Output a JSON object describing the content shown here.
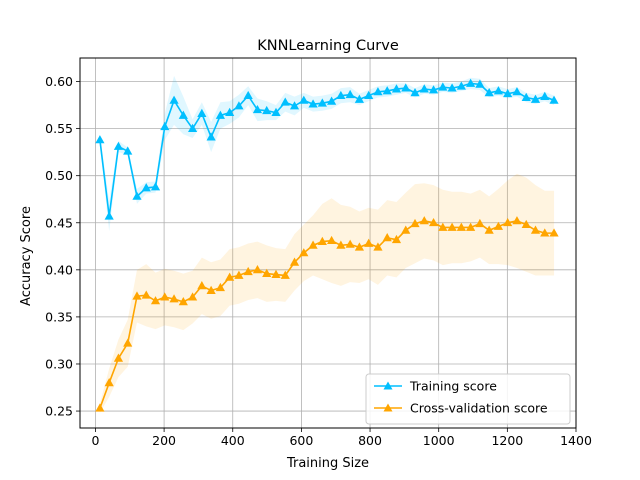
{
  "chart_data": {
    "type": "line",
    "title": "KNNLearning Curve",
    "xlabel": "Training Size",
    "ylabel": "Accuracy Score",
    "xlim": [
      -45,
      1400
    ],
    "ylim": [
      0.232,
      0.625
    ],
    "xticks": [
      0,
      200,
      400,
      600,
      800,
      1000,
      1200,
      1400
    ],
    "yticks": [
      0.25,
      0.3,
      0.35,
      0.4,
      0.45,
      0.5,
      0.55,
      0.6
    ],
    "ytick_labels": [
      "0.25",
      "0.30",
      "0.35",
      "0.40",
      "0.45",
      "0.50",
      "0.55",
      "0.60"
    ],
    "grid": true,
    "legend_position": "lower-right",
    "x": [
      13,
      40,
      67,
      94,
      121,
      148,
      175,
      202,
      229,
      256,
      283,
      310,
      337,
      364,
      391,
      418,
      445,
      472,
      499,
      526,
      553,
      580,
      607,
      634,
      661,
      688,
      715,
      742,
      769,
      796,
      823,
      850,
      877,
      904,
      931,
      958,
      985,
      1012,
      1039,
      1066,
      1093,
      1120,
      1147,
      1174,
      1201,
      1228,
      1255,
      1282,
      1309,
      1336
    ],
    "series": [
      {
        "name": "Training score",
        "color": "#00bfff",
        "marker": "triangle-up",
        "values": [
          0.538,
          0.457,
          0.531,
          0.526,
          0.478,
          0.487,
          0.488,
          0.552,
          0.58,
          0.564,
          0.55,
          0.566,
          0.541,
          0.564,
          0.567,
          0.574,
          0.585,
          0.57,
          0.569,
          0.567,
          0.578,
          0.574,
          0.58,
          0.576,
          0.577,
          0.579,
          0.585,
          0.586,
          0.581,
          0.585,
          0.589,
          0.59,
          0.592,
          0.593,
          0.588,
          0.592,
          0.591,
          0.594,
          0.593,
          0.595,
          0.598,
          0.597,
          0.588,
          0.59,
          0.587,
          0.589,
          0.583,
          0.581,
          0.584,
          0.58
        ],
        "band": [
          0.006,
          0.016,
          0.006,
          0.004,
          0.008,
          0.006,
          0.006,
          0.014,
          0.026,
          0.02,
          0.01,
          0.012,
          0.016,
          0.014,
          0.012,
          0.012,
          0.01,
          0.012,
          0.01,
          0.008,
          0.01,
          0.01,
          0.008,
          0.008,
          0.008,
          0.008,
          0.008,
          0.008,
          0.006,
          0.006,
          0.006,
          0.006,
          0.006,
          0.005,
          0.005,
          0.005,
          0.005,
          0.005,
          0.005,
          0.005,
          0.006,
          0.006,
          0.005,
          0.005,
          0.005,
          0.005,
          0.005,
          0.005,
          0.005,
          0.005
        ]
      },
      {
        "name": "Cross-validation score",
        "color": "#ffa500",
        "marker": "triangle-up",
        "values": [
          0.253,
          0.28,
          0.306,
          0.322,
          0.372,
          0.373,
          0.367,
          0.371,
          0.369,
          0.366,
          0.371,
          0.383,
          0.378,
          0.381,
          0.392,
          0.394,
          0.398,
          0.4,
          0.396,
          0.395,
          0.394,
          0.408,
          0.418,
          0.426,
          0.43,
          0.431,
          0.426,
          0.427,
          0.424,
          0.428,
          0.424,
          0.434,
          0.432,
          0.442,
          0.449,
          0.452,
          0.45,
          0.445,
          0.445,
          0.445,
          0.445,
          0.449,
          0.442,
          0.446,
          0.45,
          0.452,
          0.448,
          0.442,
          0.439,
          0.439
        ],
        "band": [
          0.005,
          0.015,
          0.02,
          0.025,
          0.028,
          0.033,
          0.03,
          0.03,
          0.03,
          0.03,
          0.028,
          0.03,
          0.03,
          0.03,
          0.03,
          0.03,
          0.03,
          0.03,
          0.03,
          0.028,
          0.028,
          0.03,
          0.03,
          0.032,
          0.04,
          0.045,
          0.043,
          0.04,
          0.038,
          0.038,
          0.04,
          0.04,
          0.04,
          0.04,
          0.042,
          0.04,
          0.04,
          0.04,
          0.038,
          0.038,
          0.036,
          0.036,
          0.036,
          0.04,
          0.045,
          0.05,
          0.05,
          0.048,
          0.045,
          0.045
        ]
      }
    ]
  }
}
